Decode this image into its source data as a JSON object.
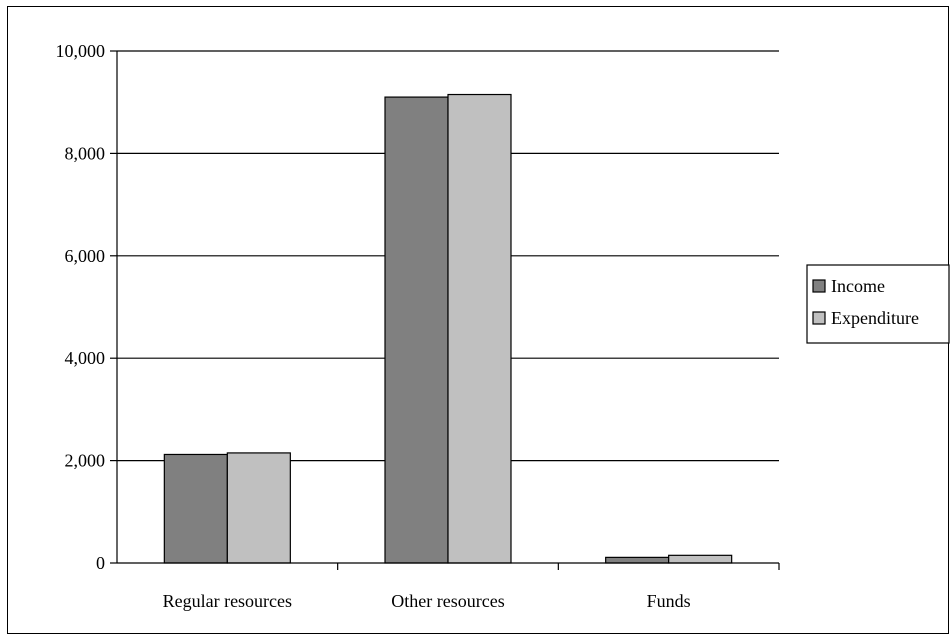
{
  "chart_data": {
    "type": "bar",
    "categories": [
      "Regular resources",
      "Other resources",
      "Funds"
    ],
    "series": [
      {
        "name": "Income",
        "color": "#808080",
        "values": [
          2120,
          9100,
          110
        ]
      },
      {
        "name": "Expenditure",
        "color": "#c0c0c0",
        "values": [
          2150,
          9150,
          150
        ]
      }
    ],
    "y_ticks": [
      "0",
      "2,000",
      "4,000",
      "6,000",
      "8,000",
      "10,000"
    ],
    "y_tick_values": [
      0,
      2000,
      4000,
      6000,
      8000,
      10000
    ],
    "ylim": [
      0,
      10000
    ],
    "title": "",
    "xlabel": "",
    "ylabel": "",
    "grid": true,
    "legend_position": "right"
  }
}
